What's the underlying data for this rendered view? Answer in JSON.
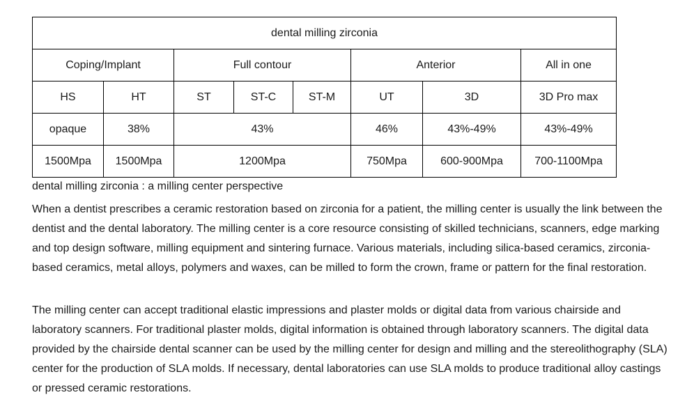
{
  "table": {
    "title": "dental milling zirconia",
    "groups": [
      "Coping/Implant",
      "Full contour",
      "Anterior",
      "All in one"
    ],
    "grades": [
      "HS",
      "HT",
      "ST",
      "ST-C",
      "ST-M",
      "UT",
      "3D",
      "3D Pro max"
    ],
    "translucency": [
      "opaque",
      "38%",
      "43%",
      "46%",
      "43%-49%",
      "43%-49%"
    ],
    "strength": [
      "1500Mpa",
      "1500Mpa",
      "1200Mpa",
      "750Mpa",
      "600-900Mpa",
      "700-1100Mpa"
    ]
  },
  "caption": "dental milling zirconia : a milling center perspective",
  "paragraphs": [
    "When a dentist prescribes a ceramic restoration based on zirconia for a patient, the milling center is usually the link between the dentist and the dental laboratory. The milling center is a core resource consisting of skilled technicians, scanners, edge marking and top design software, milling equipment and sintering furnace.  Various materials, including silica-based ceramics, zirconia-based ceramics, metal alloys, polymers and waxes, can be milled to form the crown, frame or pattern for the final restoration.",
    "The milling center can accept traditional elastic impressions and plaster molds or digital data from various chairside and laboratory scanners. For traditional plaster molds, digital information is obtained through laboratory scanners. The digital data provided by the chairside dental scanner can be used by the milling center for design and milling and the stereolithography (SLA) center for the production of SLA molds.  If necessary, dental laboratories can use SLA molds to produce traditional alloy castings or pressed ceramic restorations."
  ]
}
